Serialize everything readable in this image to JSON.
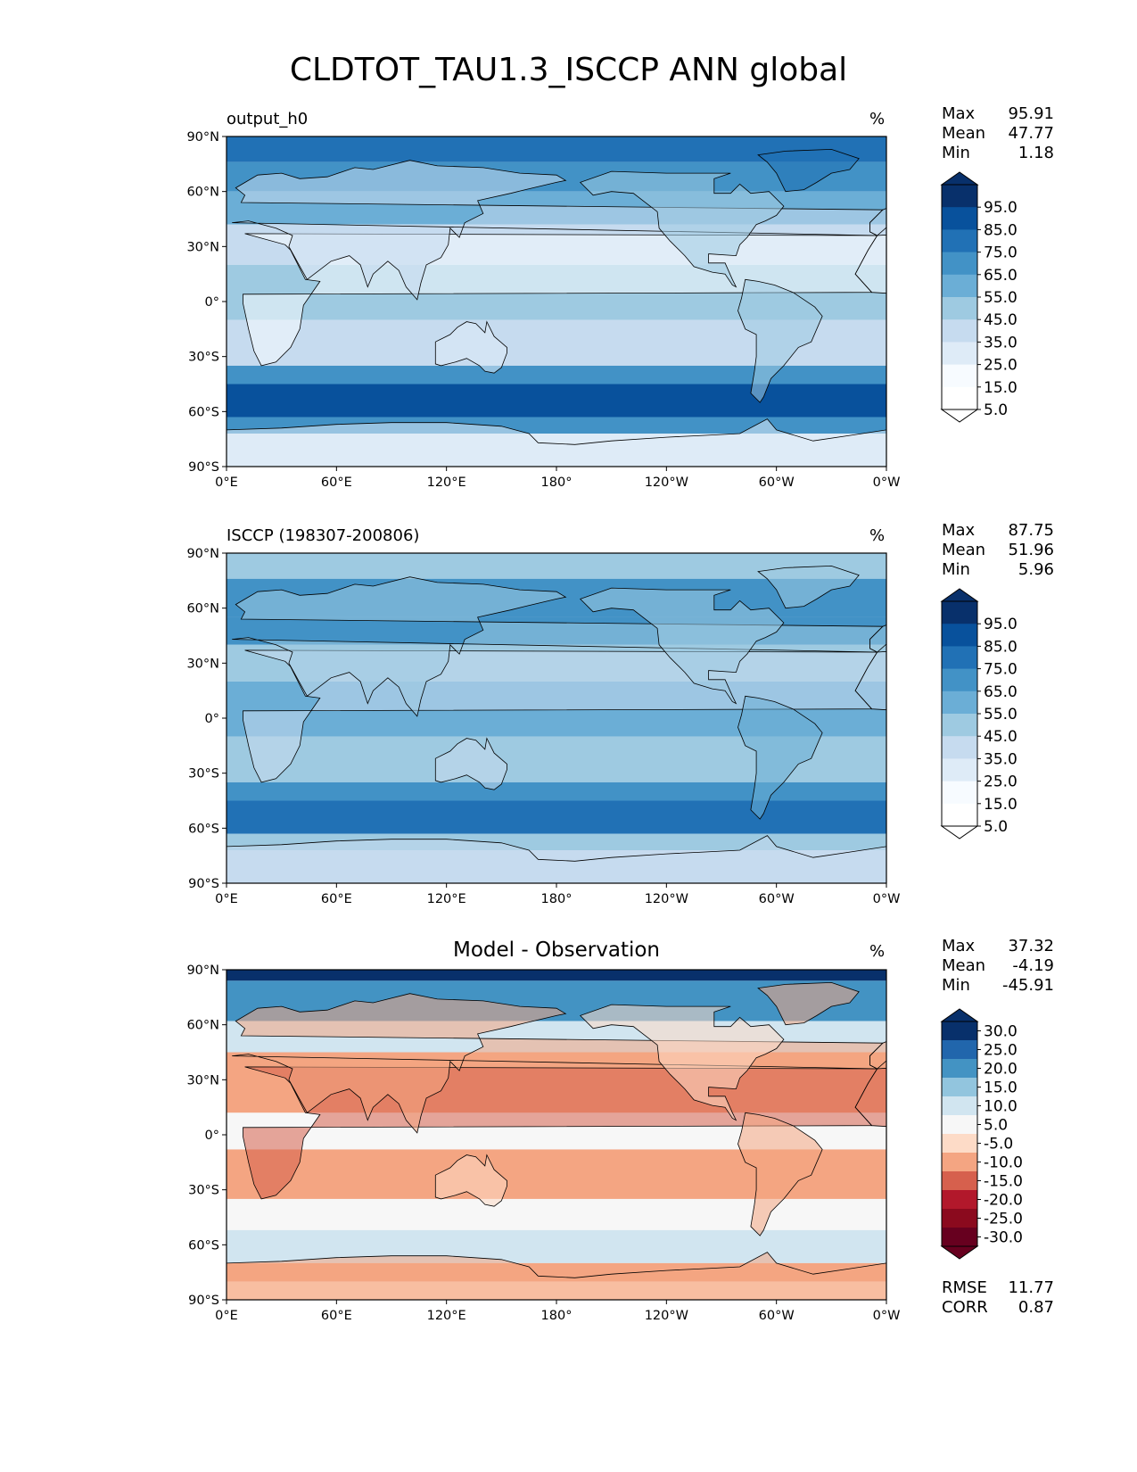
{
  "title": "CLDTOT_TAU1.3_ISCCP ANN global",
  "lon_ticks": [
    "0°E",
    "60°E",
    "120°E",
    "180°",
    "120°W",
    "60°W",
    "0°W"
  ],
  "lat_ticks": [
    "90°N",
    "60°N",
    "30°N",
    "0°",
    "30°S",
    "60°S",
    "90°S"
  ],
  "panels": [
    {
      "title": "output_h0",
      "units": "%",
      "stats": {
        "max_label": "Max",
        "max": "95.91",
        "mean_label": "Mean",
        "mean": "47.77",
        "min_label": "Min",
        "min": "1.18"
      },
      "colorbar": {
        "labels": [
          "95.0",
          "85.0",
          "75.0",
          "65.0",
          "55.0",
          "45.0",
          "35.0",
          "25.0",
          "15.0",
          "5.0"
        ],
        "colors": [
          "#08306b",
          "#08519c",
          "#2171b5",
          "#4292c6",
          "#6baed6",
          "#9ecae1",
          "#c6dbef",
          "#deebf7",
          "#f7fbff",
          "#ffffff"
        ],
        "over_color": "#08306b",
        "under_color": "#ffffff"
      }
    },
    {
      "title": "ISCCP (198307-200806)",
      "units": "%",
      "stats": {
        "max_label": "Max",
        "max": "87.75",
        "mean_label": "Mean",
        "mean": "51.96",
        "min_label": "Min",
        "min": "5.96"
      },
      "colorbar": {
        "labels": [
          "95.0",
          "85.0",
          "75.0",
          "65.0",
          "55.0",
          "45.0",
          "35.0",
          "25.0",
          "15.0",
          "5.0"
        ],
        "colors": [
          "#08306b",
          "#08519c",
          "#2171b5",
          "#4292c6",
          "#6baed6",
          "#9ecae1",
          "#c6dbef",
          "#deebf7",
          "#f7fbff",
          "#ffffff"
        ],
        "over_color": "#08306b",
        "under_color": "#ffffff"
      }
    },
    {
      "title": "Model - Observation",
      "units": "%",
      "stats": {
        "max_label": "Max",
        "max": "37.32",
        "mean_label": "Mean",
        "mean": "-4.19",
        "min_label": "Min",
        "min": "-45.91"
      },
      "colorbar": {
        "labels": [
          "30.0",
          "25.0",
          "20.0",
          "15.0",
          "10.0",
          "5.0",
          "-5.0",
          "-10.0",
          "-15.0",
          "-20.0",
          "-25.0",
          "-30.0"
        ],
        "colors": [
          "#08306b",
          "#2166ac",
          "#4393c3",
          "#92c5de",
          "#d1e5f0",
          "#f7f7f7",
          "#fddbc7",
          "#f4a582",
          "#d6604d",
          "#b2182b",
          "#8b0a1e",
          "#67001f"
        ],
        "over_color": "#08306b",
        "under_color": "#67001f"
      },
      "metrics": {
        "rmse_label": "RMSE",
        "rmse": "11.77",
        "corr_label": "CORR",
        "corr": "0.87"
      }
    }
  ]
}
